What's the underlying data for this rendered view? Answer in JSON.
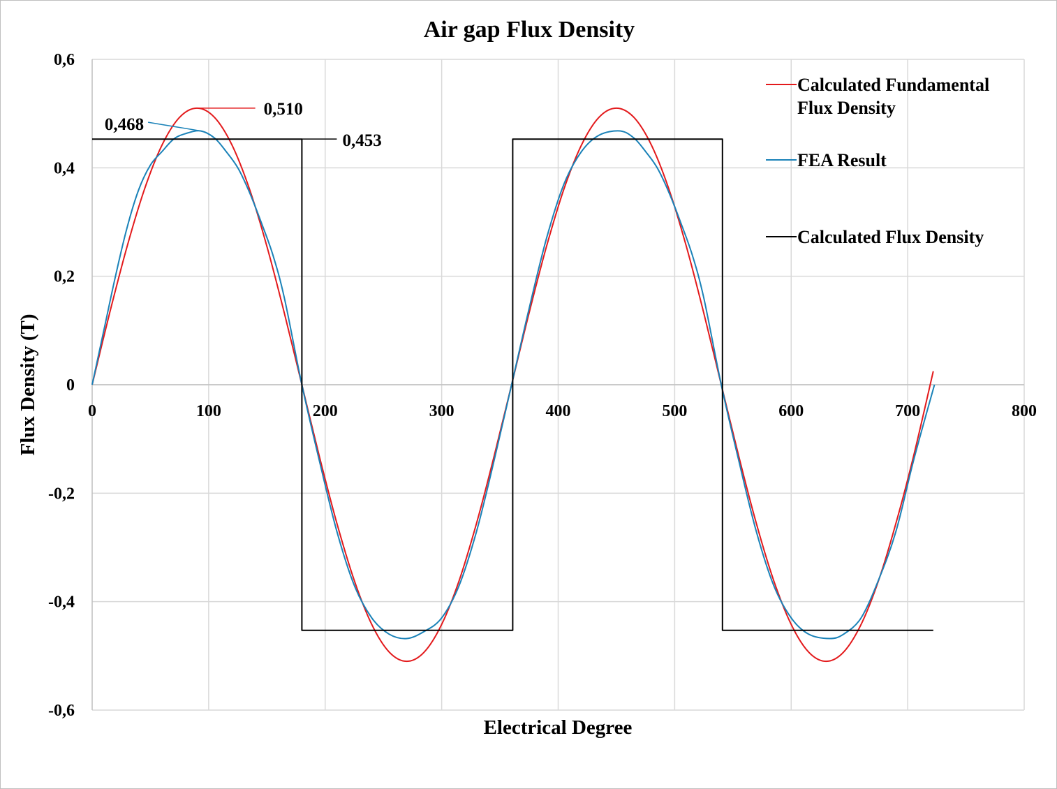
{
  "chart_data": {
    "type": "line",
    "title": "Air gap Flux Density",
    "xlabel": "Electrical Degree",
    "ylabel": "Flux Density (T)",
    "xlim": [
      0,
      800
    ],
    "ylim": [
      -0.6,
      0.6
    ],
    "x_ticks": [
      0,
      100,
      200,
      300,
      400,
      500,
      600,
      700,
      800
    ],
    "x_tick_labels": [
      "0",
      "100",
      "200",
      "300",
      "400",
      "500",
      "600",
      "700",
      "800"
    ],
    "y_ticks": [
      0.6,
      0.4,
      0.2,
      0,
      -0.2,
      -0.4,
      -0.6
    ],
    "y_tick_labels": [
      "0,6",
      "0,4",
      "0,2",
      "0",
      "-0,2",
      "-0,4",
      "-0,6"
    ],
    "grid": "vertical and horizontal major gridlines",
    "legend_position": "right",
    "series": [
      {
        "name": "Calculated Fundamental Flux Density",
        "color": "#e31a1c",
        "x": [
          0,
          15,
          30,
          45,
          60,
          75,
          90,
          105,
          120,
          135,
          150,
          165,
          180,
          195,
          210,
          225,
          240,
          255,
          270,
          285,
          300,
          315,
          330,
          345,
          360,
          375,
          390,
          405,
          420,
          435,
          450,
          465,
          480,
          495,
          510,
          525,
          540,
          555,
          570,
          585,
          600,
          615,
          630,
          645,
          660,
          675,
          690,
          705,
          722
        ],
        "y": [
          0,
          0.132,
          0.255,
          0.361,
          0.442,
          0.493,
          0.51,
          0.493,
          0.442,
          0.361,
          0.255,
          0.132,
          0,
          -0.132,
          -0.255,
          -0.361,
          -0.442,
          -0.493,
          -0.51,
          -0.493,
          -0.442,
          -0.361,
          -0.255,
          -0.132,
          0,
          0.132,
          0.255,
          0.361,
          0.442,
          0.493,
          0.51,
          0.493,
          0.442,
          0.361,
          0.255,
          0.132,
          0,
          -0.132,
          -0.255,
          -0.361,
          -0.442,
          -0.493,
          -0.51,
          -0.493,
          -0.442,
          -0.361,
          -0.255,
          -0.132,
          0.025
        ]
      },
      {
        "name": "FEA Result",
        "color": "#1a82b8",
        "x": [
          0,
          10,
          20,
          30,
          40,
          50,
          60,
          70,
          80,
          93,
          105,
          115,
          125,
          135,
          145,
          155,
          165,
          180,
          195,
          210,
          225,
          240,
          255,
          270,
          285,
          300,
          315,
          330,
          345,
          360,
          375,
          390,
          405,
          420,
          435,
          453,
          465,
          475,
          485,
          495,
          505,
          515,
          525,
          540,
          555,
          570,
          585,
          600,
          615,
          633,
          645,
          660,
          675,
          690,
          705,
          723
        ],
        "y": [
          0,
          0.1,
          0.2,
          0.29,
          0.36,
          0.405,
          0.43,
          0.453,
          0.463,
          0.468,
          0.455,
          0.43,
          0.4,
          0.355,
          0.3,
          0.24,
          0.16,
          0,
          -0.14,
          -0.27,
          -0.37,
          -0.43,
          -0.46,
          -0.468,
          -0.455,
          -0.43,
          -0.37,
          -0.27,
          -0.14,
          0,
          0.14,
          0.27,
          0.37,
          0.43,
          0.46,
          0.468,
          0.455,
          0.43,
          0.4,
          0.355,
          0.3,
          0.24,
          0.16,
          0,
          -0.14,
          -0.27,
          -0.37,
          -0.43,
          -0.46,
          -0.468,
          -0.46,
          -0.43,
          -0.36,
          -0.27,
          -0.14,
          0
        ]
      },
      {
        "name": "Calculated Flux Density",
        "color": "#000000",
        "x": [
          0,
          180,
          180,
          361,
          361,
          541,
          541,
          722
        ],
        "y": [
          0.453,
          0.453,
          -0.453,
          -0.453,
          0.453,
          0.453,
          -0.453,
          -0.453
        ]
      }
    ],
    "annotations": [
      {
        "text": "0,510",
        "series": "Calculated Fundamental Flux Density",
        "x": 90,
        "y": 0.51
      },
      {
        "text": "0,468",
        "series": "FEA Result",
        "x": 93,
        "y": 0.468
      },
      {
        "text": "0,453",
        "series": "Calculated Flux Density",
        "x": 180,
        "y": 0.453
      }
    ]
  },
  "legend": {
    "items": [
      {
        "lines": [
          "Calculated Fundamental",
          "Flux Density"
        ],
        "color": "#e31a1c"
      },
      {
        "lines": [
          "FEA Result"
        ],
        "color": "#1a82b8"
      },
      {
        "lines": [
          "Calculated Flux Density"
        ],
        "color": "#000000"
      }
    ]
  }
}
